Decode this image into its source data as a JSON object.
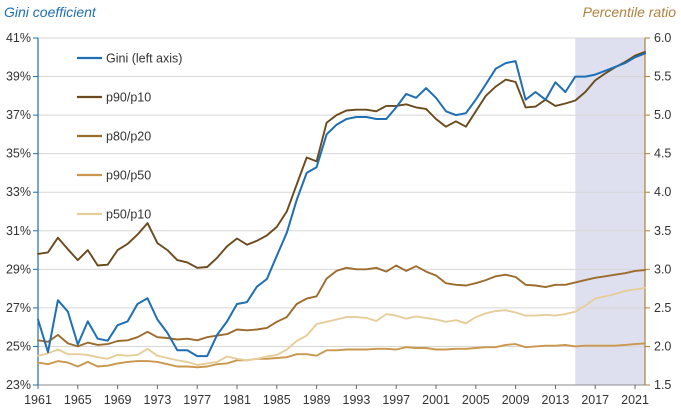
{
  "chart_data": {
    "type": "line",
    "left_axis_title": "Gini coefficient",
    "right_axis_title": "Percentile ratio",
    "left_ylim": [
      23,
      41
    ],
    "right_ylim": [
      1.5,
      6.0
    ],
    "left_ticks": [
      "23%",
      "25%",
      "27%",
      "29%",
      "31%",
      "33%",
      "35%",
      "37%",
      "39%",
      "41%"
    ],
    "right_ticks": [
      "1.5",
      "2.0",
      "2.5",
      "3.0",
      "3.5",
      "4.0",
      "4.5",
      "5.0",
      "5.5",
      "6.0"
    ],
    "x_ticks": [
      "1961",
      "1965",
      "1969",
      "1973",
      "1977",
      "1981",
      "1985",
      "1989",
      "1993",
      "1997",
      "2001",
      "2005",
      "2009",
      "2013",
      "2017",
      "2021"
    ],
    "xlim": [
      1961,
      2022
    ],
    "shaded_region": [
      2015,
      2022
    ],
    "grid": "horizontal",
    "legend_placement": "top-left",
    "colors": {
      "gini": "#1f6fb4",
      "p90_p10": "#6b4a1e",
      "p80_p20": "#9c6c2e",
      "p90_p50": "#c9974d",
      "p50_p10": "#e6cd9a",
      "shade": "#dfe0ef",
      "grid": "#d7d7d7",
      "left_axis": "#1f6fb4",
      "right_axis": "#b0803e"
    },
    "series": [
      {
        "name": "Gini (left axis)",
        "key": "gini",
        "axis": "left",
        "x": [
          1961,
          1962,
          1963,
          1964,
          1965,
          1966,
          1967,
          1968,
          1969,
          1970,
          1971,
          1972,
          1973,
          1974,
          1975,
          1976,
          1977,
          1978,
          1979,
          1980,
          1981,
          1982,
          1983,
          1984,
          1985,
          1986,
          1987,
          1988,
          1989,
          1990,
          1991,
          1992,
          1993,
          1994,
          1995,
          1996,
          1997,
          1998,
          1999,
          2000,
          2001,
          2002,
          2003,
          2004,
          2005,
          2006,
          2007,
          2008,
          2009,
          2010,
          2011,
          2012,
          2013,
          2014,
          2015,
          2016,
          2017,
          2018,
          2019,
          2020,
          2021,
          2022
        ],
        "values": [
          26.4,
          24.7,
          27.4,
          26.8,
          25.1,
          26.3,
          25.4,
          25.3,
          26.1,
          26.3,
          27.2,
          27.5,
          26.4,
          25.7,
          24.8,
          24.8,
          24.5,
          24.5,
          25.6,
          26.3,
          27.2,
          27.3,
          28.1,
          28.5,
          29.7,
          30.9,
          32.6,
          34.0,
          34.3,
          36.0,
          36.5,
          36.8,
          36.9,
          36.9,
          36.8,
          36.8,
          37.4,
          38.1,
          37.9,
          38.4,
          37.9,
          37.2,
          37.0,
          37.1,
          37.8,
          38.6,
          39.4,
          39.7,
          39.8,
          37.8,
          38.2,
          37.8,
          38.7,
          38.2,
          39.0,
          39.0,
          39.1,
          39.3,
          39.5,
          39.7,
          40.0,
          40.2
        ]
      },
      {
        "name": "p90/p10",
        "key": "p90_p10",
        "axis": "right",
        "x": [
          1961,
          1962,
          1963,
          1964,
          1965,
          1966,
          1967,
          1968,
          1969,
          1970,
          1971,
          1972,
          1973,
          1974,
          1975,
          1976,
          1977,
          1978,
          1979,
          1980,
          1981,
          1982,
          1983,
          1984,
          1985,
          1986,
          1987,
          1988,
          1989,
          1990,
          1991,
          1992,
          1993,
          1994,
          1995,
          1996,
          1997,
          1998,
          1999,
          2000,
          2001,
          2002,
          2003,
          2004,
          2005,
          2006,
          2007,
          2008,
          2009,
          2010,
          2011,
          2012,
          2013,
          2014,
          2015,
          2016,
          2017,
          2018,
          2019,
          2020,
          2021,
          2022
        ],
        "values": [
          3.2,
          3.22,
          3.41,
          3.26,
          3.12,
          3.25,
          3.05,
          3.06,
          3.25,
          3.33,
          3.45,
          3.6,
          3.34,
          3.25,
          3.12,
          3.09,
          3.02,
          3.03,
          3.15,
          3.3,
          3.4,
          3.32,
          3.37,
          3.44,
          3.55,
          3.75,
          4.1,
          4.45,
          4.4,
          4.9,
          5.0,
          5.06,
          5.07,
          5.07,
          5.05,
          5.12,
          5.12,
          5.14,
          5.1,
          5.08,
          4.95,
          4.85,
          4.92,
          4.85,
          5.05,
          5.25,
          5.37,
          5.46,
          5.43,
          5.1,
          5.11,
          5.2,
          5.12,
          5.15,
          5.19,
          5.3,
          5.45,
          5.54,
          5.62,
          5.69,
          5.77,
          5.82
        ]
      },
      {
        "name": "p80/p20",
        "key": "p80_p20",
        "axis": "right",
        "x": [
          1961,
          1962,
          1963,
          1964,
          1965,
          1966,
          1967,
          1968,
          1969,
          1970,
          1971,
          1972,
          1973,
          1974,
          1975,
          1976,
          1977,
          1978,
          1979,
          1980,
          1981,
          1982,
          1983,
          1984,
          1985,
          1986,
          1987,
          1988,
          1989,
          1990,
          1991,
          1992,
          1993,
          1994,
          1995,
          1996,
          1997,
          1998,
          1999,
          2000,
          2001,
          2002,
          2003,
          2004,
          2005,
          2006,
          2007,
          2008,
          2009,
          2010,
          2011,
          2012,
          2013,
          2014,
          2015,
          2016,
          2017,
          2018,
          2019,
          2020,
          2021,
          2022
        ],
        "values": [
          2.08,
          2.06,
          2.15,
          2.04,
          2.0,
          2.05,
          2.02,
          2.03,
          2.07,
          2.08,
          2.12,
          2.19,
          2.12,
          2.11,
          2.09,
          2.1,
          2.08,
          2.12,
          2.14,
          2.16,
          2.22,
          2.21,
          2.22,
          2.24,
          2.32,
          2.38,
          2.55,
          2.62,
          2.65,
          2.88,
          2.98,
          3.02,
          3.0,
          3.0,
          3.02,
          2.97,
          3.05,
          2.98,
          3.04,
          2.97,
          2.92,
          2.82,
          2.8,
          2.79,
          2.82,
          2.86,
          2.91,
          2.93,
          2.9,
          2.8,
          2.79,
          2.77,
          2.8,
          2.8,
          2.83,
          2.86,
          2.89,
          2.91,
          2.93,
          2.95,
          2.98,
          2.99
        ]
      },
      {
        "name": "p90/p50",
        "key": "p90_p50",
        "axis": "right",
        "x": [
          1961,
          1962,
          1963,
          1964,
          1965,
          1966,
          1967,
          1968,
          1969,
          1970,
          1971,
          1972,
          1973,
          1974,
          1975,
          1976,
          1977,
          1978,
          1979,
          1980,
          1981,
          1982,
          1983,
          1984,
          1985,
          1986,
          1987,
          1988,
          1989,
          1990,
          1991,
          1992,
          1993,
          1994,
          1995,
          1996,
          1997,
          1998,
          1999,
          2000,
          2001,
          2002,
          2003,
          2004,
          2005,
          2006,
          2007,
          2008,
          2009,
          2010,
          2011,
          2012,
          2013,
          2014,
          2015,
          2016,
          2017,
          2018,
          2019,
          2020,
          2021,
          2022
        ],
        "values": [
          1.79,
          1.77,
          1.81,
          1.79,
          1.74,
          1.8,
          1.74,
          1.75,
          1.78,
          1.8,
          1.81,
          1.81,
          1.8,
          1.77,
          1.74,
          1.74,
          1.73,
          1.74,
          1.77,
          1.78,
          1.82,
          1.82,
          1.84,
          1.84,
          1.85,
          1.86,
          1.9,
          1.9,
          1.88,
          1.95,
          1.95,
          1.96,
          1.96,
          1.96,
          1.97,
          1.97,
          1.96,
          1.99,
          1.98,
          1.98,
          1.96,
          1.96,
          1.97,
          1.97,
          1.98,
          1.99,
          1.99,
          2.02,
          2.03,
          1.99,
          2.0,
          2.01,
          2.01,
          2.02,
          2.0,
          2.01,
          2.01,
          2.01,
          2.01,
          2.02,
          2.03,
          2.04
        ]
      },
      {
        "name": "p50/p10",
        "key": "p50_p10",
        "axis": "right",
        "x": [
          1961,
          1962,
          1963,
          1964,
          1965,
          1966,
          1967,
          1968,
          1969,
          1970,
          1971,
          1972,
          1973,
          1974,
          1975,
          1976,
          1977,
          1978,
          1979,
          1980,
          1981,
          1982,
          1983,
          1984,
          1985,
          1986,
          1987,
          1988,
          1989,
          1990,
          1991,
          1992,
          1993,
          1994,
          1995,
          1996,
          1997,
          1998,
          1999,
          2000,
          2001,
          2002,
          2003,
          2004,
          2005,
          2006,
          2007,
          2008,
          2009,
          2010,
          2011,
          2012,
          2013,
          2014,
          2015,
          2016,
          2017,
          2018,
          2019,
          2020,
          2021,
          2022
        ],
        "values": [
          1.88,
          1.91,
          1.96,
          1.9,
          1.9,
          1.89,
          1.86,
          1.84,
          1.89,
          1.88,
          1.89,
          1.97,
          1.88,
          1.85,
          1.82,
          1.8,
          1.76,
          1.78,
          1.8,
          1.87,
          1.84,
          1.82,
          1.84,
          1.87,
          1.89,
          1.96,
          2.07,
          2.14,
          2.29,
          2.32,
          2.35,
          2.38,
          2.38,
          2.37,
          2.33,
          2.42,
          2.4,
          2.36,
          2.39,
          2.37,
          2.35,
          2.32,
          2.34,
          2.3,
          2.38,
          2.43,
          2.46,
          2.47,
          2.44,
          2.4,
          2.4,
          2.41,
          2.4,
          2.42,
          2.45,
          2.53,
          2.62,
          2.65,
          2.68,
          2.72,
          2.74,
          2.76
        ]
      }
    ]
  }
}
